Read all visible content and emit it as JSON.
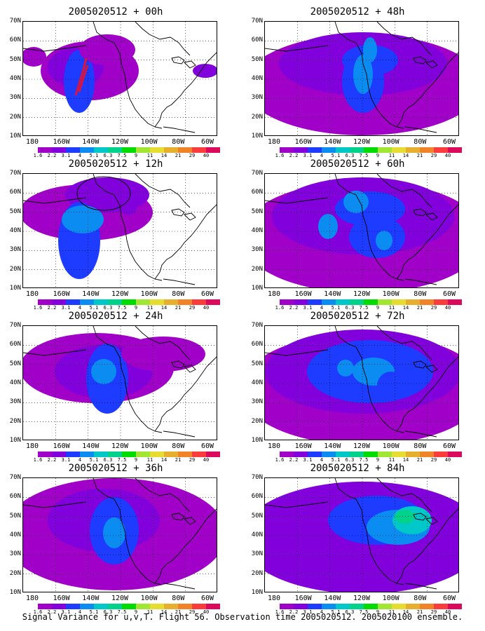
{
  "figure": {
    "caption": "Signal Variance for u,v,T. Flight 56. Observation time 2005020512. 2005020100 ensemble."
  },
  "colorbar": {
    "levels": [
      "1.6",
      "2.2",
      "3.1",
      "4",
      "5.1",
      "6.3",
      "7.5",
      "9",
      "11",
      "14",
      "21",
      "29",
      "40"
    ],
    "colors": [
      "#a000c8",
      "#8200dc",
      "#1e3cff",
      "#0a8cf0",
      "#00c8c8",
      "#00d28c",
      "#00dc00",
      "#a0e632",
      "#e6dc32",
      "#e6af2d",
      "#f08228",
      "#fa3c3c",
      "#dc0a5a"
    ]
  },
  "axes": {
    "y_labels": [
      "70N",
      "60N",
      "50N",
      "40N",
      "30N",
      "20N",
      "10N"
    ],
    "x_labels": [
      "180",
      "160W",
      "140W",
      "120W",
      "100W",
      "80W",
      "60W"
    ]
  },
  "panels": [
    {
      "title": "2005020512 + 00h",
      "lead_hours": 0,
      "position": "left-1"
    },
    {
      "title": "2005020512 + 48h",
      "lead_hours": 48,
      "position": "right-1"
    },
    {
      "title": "2005020512 + 12h",
      "lead_hours": 12,
      "position": "left-2"
    },
    {
      "title": "2005020512 + 60h",
      "lead_hours": 60,
      "position": "right-2"
    },
    {
      "title": "2005020512 + 24h",
      "lead_hours": 24,
      "position": "left-3"
    },
    {
      "title": "2005020512 + 72h",
      "lead_hours": 72,
      "position": "right-3"
    },
    {
      "title": "2005020512 + 36h",
      "lead_hours": 36,
      "position": "left-4"
    },
    {
      "title": "2005020512 + 84h",
      "lead_hours": 84,
      "position": "right-4"
    }
  ],
  "map_region": {
    "lon_range": [
      "180",
      "60W"
    ],
    "lat_range": [
      "10N",
      "70N"
    ],
    "field": "signal variance",
    "flight_track_color": "#dc143c"
  }
}
